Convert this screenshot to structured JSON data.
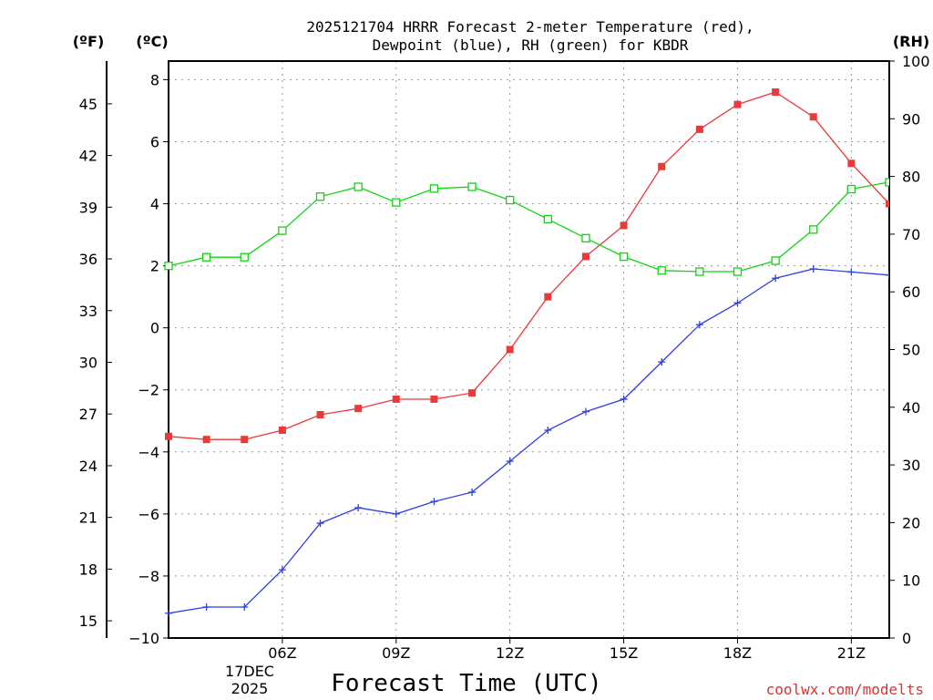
{
  "title_line1": "2025121704 HRRR Forecast 2-meter Temperature (red),",
  "title_line2": "Dewpoint (blue), RH (green) for KBDR",
  "unit_f": "(ºF)",
  "unit_c": "(ºC)",
  "unit_rh": "(RH)",
  "xlabel": "Forecast Time (UTC)",
  "date_line1": "17DEC",
  "date_line2": "2025",
  "credit": "coolwx.com/modelts",
  "colors": {
    "temperature": "#e83a3a",
    "dewpoint": "#2f3fe0",
    "rh": "#11d411"
  },
  "chart_data": {
    "type": "line",
    "x": [
      3,
      4,
      5,
      6,
      7,
      8,
      9,
      10,
      11,
      12,
      13,
      14,
      15,
      16,
      17,
      18,
      19,
      20,
      21,
      22
    ],
    "x_ticks": [
      6,
      9,
      12,
      15,
      18,
      21
    ],
    "x_tick_labels": [
      "06Z",
      "09Z",
      "12Z",
      "15Z",
      "18Z",
      "21Z"
    ],
    "xlim": [
      3,
      22
    ],
    "y_left_c": {
      "label": "(ºC)",
      "ylim": [
        -10,
        8.6
      ],
      "ticks": [
        -10,
        -8,
        -6,
        -4,
        -2,
        0,
        2,
        4,
        6,
        8
      ],
      "tick_labels": [
        "-10",
        "-8",
        "-6",
        "-4",
        "-2",
        "0",
        "2",
        "4",
        "6",
        "8"
      ]
    },
    "y_left_f": {
      "label": "(ºF)",
      "ticks": [
        15,
        18,
        21,
        24,
        27,
        30,
        33,
        36,
        39,
        42,
        45
      ],
      "tick_labels": [
        "15",
        "18",
        "21",
        "24",
        "27",
        "30",
        "33",
        "36",
        "39",
        "42",
        "45"
      ]
    },
    "y_right_rh": {
      "label": "(RH)",
      "ylim": [
        0,
        100
      ],
      "ticks": [
        0,
        10,
        20,
        30,
        40,
        50,
        60,
        70,
        80,
        90,
        100
      ],
      "tick_labels": [
        "0",
        "10",
        "20",
        "30",
        "40",
        "50",
        "60",
        "70",
        "80",
        "90",
        "100"
      ]
    },
    "grid": true,
    "series": [
      {
        "name": "Temperature",
        "axis": "c",
        "marker": "square",
        "values": [
          -3.5,
          -3.6,
          -3.6,
          -3.3,
          -2.8,
          -2.6,
          -2.3,
          -2.3,
          -2.1,
          -0.7,
          1.0,
          2.3,
          3.3,
          5.2,
          6.4,
          7.2,
          7.6,
          6.8,
          5.3,
          4.0
        ]
      },
      {
        "name": "Dewpoint",
        "axis": "c",
        "marker": "plus",
        "values": [
          -9.2,
          -9.0,
          -9.0,
          -7.8,
          -6.3,
          -5.8,
          -6.0,
          -5.6,
          -5.3,
          -4.3,
          -3.3,
          -2.7,
          -2.3,
          -1.1,
          0.1,
          0.8,
          1.6,
          1.9,
          1.8,
          1.7
        ]
      },
      {
        "name": "RH",
        "axis": "rh",
        "marker": "open-square",
        "values": [
          64.5,
          66.0,
          66.0,
          70.6,
          76.5,
          78.2,
          75.5,
          77.9,
          78.2,
          75.9,
          72.6,
          69.3,
          66.1,
          63.7,
          63.5,
          63.5,
          65.4,
          70.8,
          77.8,
          79.0
        ]
      }
    ]
  }
}
